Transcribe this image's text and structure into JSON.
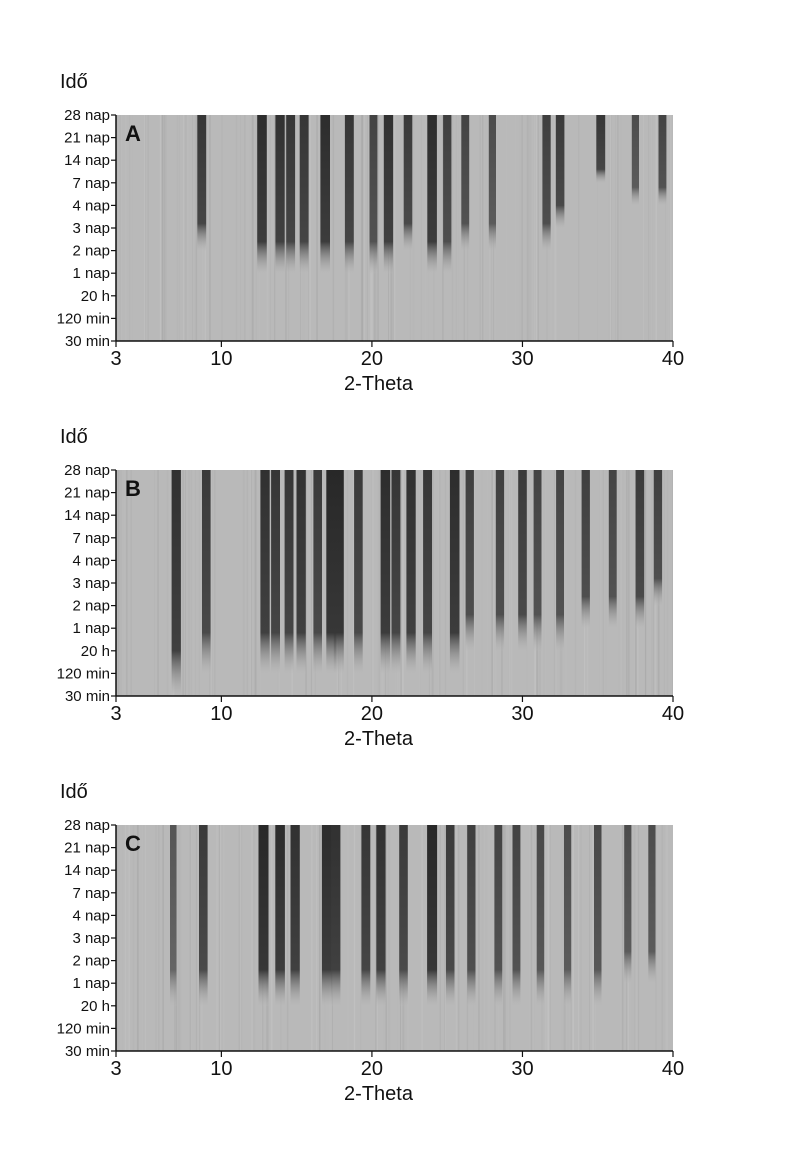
{
  "chart_data": [
    {
      "type": "heatmap",
      "panel_label": "A",
      "ylabel": "Idő",
      "xlabel": "2-Theta",
      "xlim": [
        3,
        40
      ],
      "x_ticks": [
        "3",
        "10",
        "20",
        "30",
        "40"
      ],
      "y_ticks": [
        "28 nap",
        "21 nap",
        "14 nap",
        "7 nap",
        "4 nap",
        "3 nap",
        "2 nap",
        "1 nap",
        "20 h",
        "120 min",
        "30 min"
      ],
      "peaks": [
        {
          "x": 8.7,
          "onset": "2 nap",
          "intensity": 0.85
        },
        {
          "x": 12.7,
          "onset": "1 nap",
          "intensity": 0.95
        },
        {
          "x": 13.9,
          "onset": "1 nap",
          "intensity": 0.9
        },
        {
          "x": 14.6,
          "onset": "1 nap",
          "intensity": 0.85
        },
        {
          "x": 15.5,
          "onset": "1 nap",
          "intensity": 0.85
        },
        {
          "x": 16.9,
          "onset": "1 nap",
          "intensity": 0.95
        },
        {
          "x": 18.5,
          "onset": "1 nap",
          "intensity": 0.85
        },
        {
          "x": 20.1,
          "onset": "1 nap",
          "intensity": 0.7
        },
        {
          "x": 21.1,
          "onset": "1 nap",
          "intensity": 0.9
        },
        {
          "x": 22.4,
          "onset": "2 nap",
          "intensity": 0.8
        },
        {
          "x": 24.0,
          "onset": "1 nap",
          "intensity": 0.95
        },
        {
          "x": 25.0,
          "onset": "1 nap",
          "intensity": 0.75
        },
        {
          "x": 26.2,
          "onset": "2 nap",
          "intensity": 0.7
        },
        {
          "x": 28.0,
          "onset": "2 nap",
          "intensity": 0.6
        },
        {
          "x": 31.6,
          "onset": "2 nap",
          "intensity": 0.75
        },
        {
          "x": 32.5,
          "onset": "3 nap",
          "intensity": 0.8
        },
        {
          "x": 35.2,
          "onset": "7 nap",
          "intensity": 0.85
        },
        {
          "x": 37.5,
          "onset": "4 nap",
          "intensity": 0.6
        },
        {
          "x": 39.3,
          "onset": "4 nap",
          "intensity": 0.7
        }
      ]
    },
    {
      "type": "heatmap",
      "panel_label": "B",
      "ylabel": "Idő",
      "xlabel": "2-Theta",
      "xlim": [
        3,
        40
      ],
      "x_ticks": [
        "3",
        "10",
        "20",
        "30",
        "40"
      ],
      "y_ticks": [
        "28 nap",
        "21 nap",
        "14 nap",
        "7 nap",
        "4 nap",
        "3 nap",
        "2 nap",
        "1 nap",
        "20 h",
        "120 min",
        "30 min"
      ],
      "peaks": [
        {
          "x": 7.0,
          "onset": "30 min",
          "intensity": 0.9
        },
        {
          "x": 9.0,
          "onset": "120 min",
          "intensity": 0.8
        },
        {
          "x": 12.9,
          "onset": "120 min",
          "intensity": 0.9
        },
        {
          "x": 13.6,
          "onset": "120 min",
          "intensity": 0.85
        },
        {
          "x": 14.5,
          "onset": "120 min",
          "intensity": 0.85
        },
        {
          "x": 15.3,
          "onset": "120 min",
          "intensity": 0.9
        },
        {
          "x": 16.4,
          "onset": "120 min",
          "intensity": 0.8
        },
        {
          "x": 17.3,
          "onset": "120 min",
          "intensity": 1.0
        },
        {
          "x": 17.8,
          "onset": "120 min",
          "intensity": 1.0
        },
        {
          "x": 19.1,
          "onset": "120 min",
          "intensity": 0.8
        },
        {
          "x": 20.9,
          "onset": "120 min",
          "intensity": 0.95
        },
        {
          "x": 21.6,
          "onset": "120 min",
          "intensity": 0.85
        },
        {
          "x": 22.6,
          "onset": "120 min",
          "intensity": 0.9
        },
        {
          "x": 23.7,
          "onset": "120 min",
          "intensity": 0.85
        },
        {
          "x": 25.5,
          "onset": "120 min",
          "intensity": 0.95
        },
        {
          "x": 26.5,
          "onset": "20 h",
          "intensity": 0.75
        },
        {
          "x": 28.5,
          "onset": "20 h",
          "intensity": 0.75
        },
        {
          "x": 30.0,
          "onset": "20 h",
          "intensity": 0.8
        },
        {
          "x": 31.0,
          "onset": "20 h",
          "intensity": 0.7
        },
        {
          "x": 32.5,
          "onset": "20 h",
          "intensity": 0.7
        },
        {
          "x": 34.2,
          "onset": "1 nap",
          "intensity": 0.75
        },
        {
          "x": 36.0,
          "onset": "1 nap",
          "intensity": 0.7
        },
        {
          "x": 37.8,
          "onset": "1 nap",
          "intensity": 0.8
        },
        {
          "x": 39.0,
          "onset": "2 nap",
          "intensity": 0.75
        }
      ]
    },
    {
      "type": "heatmap",
      "panel_label": "C",
      "ylabel": "Idő",
      "xlabel": "2-Theta",
      "xlim": [
        3,
        40
      ],
      "x_ticks": [
        "3",
        "10",
        "20",
        "30",
        "40"
      ],
      "y_ticks": [
        "28 nap",
        "21 nap",
        "14 nap",
        "7 nap",
        "4 nap",
        "3 nap",
        "2 nap",
        "1 nap",
        "20 h",
        "120 min",
        "30 min"
      ],
      "peaks": [
        {
          "x": 6.8,
          "onset": "20 h",
          "intensity": 0.5
        },
        {
          "x": 8.8,
          "onset": "20 h",
          "intensity": 0.8
        },
        {
          "x": 12.8,
          "onset": "20 h",
          "intensity": 1.0
        },
        {
          "x": 13.9,
          "onset": "20 h",
          "intensity": 0.95
        },
        {
          "x": 14.9,
          "onset": "20 h",
          "intensity": 0.9
        },
        {
          "x": 17.0,
          "onset": "20 h",
          "intensity": 0.95
        },
        {
          "x": 17.6,
          "onset": "20 h",
          "intensity": 0.9
        },
        {
          "x": 19.6,
          "onset": "20 h",
          "intensity": 0.85
        },
        {
          "x": 20.6,
          "onset": "20 h",
          "intensity": 0.9
        },
        {
          "x": 22.1,
          "onset": "20 h",
          "intensity": 0.8
        },
        {
          "x": 24.0,
          "onset": "20 h",
          "intensity": 1.0
        },
        {
          "x": 25.2,
          "onset": "20 h",
          "intensity": 0.8
        },
        {
          "x": 26.6,
          "onset": "20 h",
          "intensity": 0.75
        },
        {
          "x": 28.4,
          "onset": "20 h",
          "intensity": 0.7
        },
        {
          "x": 29.6,
          "onset": "20 h",
          "intensity": 0.7
        },
        {
          "x": 31.2,
          "onset": "20 h",
          "intensity": 0.65
        },
        {
          "x": 33.0,
          "onset": "20 h",
          "intensity": 0.6
        },
        {
          "x": 35.0,
          "onset": "20 h",
          "intensity": 0.65
        },
        {
          "x": 37.0,
          "onset": "1 nap",
          "intensity": 0.6
        },
        {
          "x": 38.6,
          "onset": "1 nap",
          "intensity": 0.6
        }
      ]
    }
  ]
}
